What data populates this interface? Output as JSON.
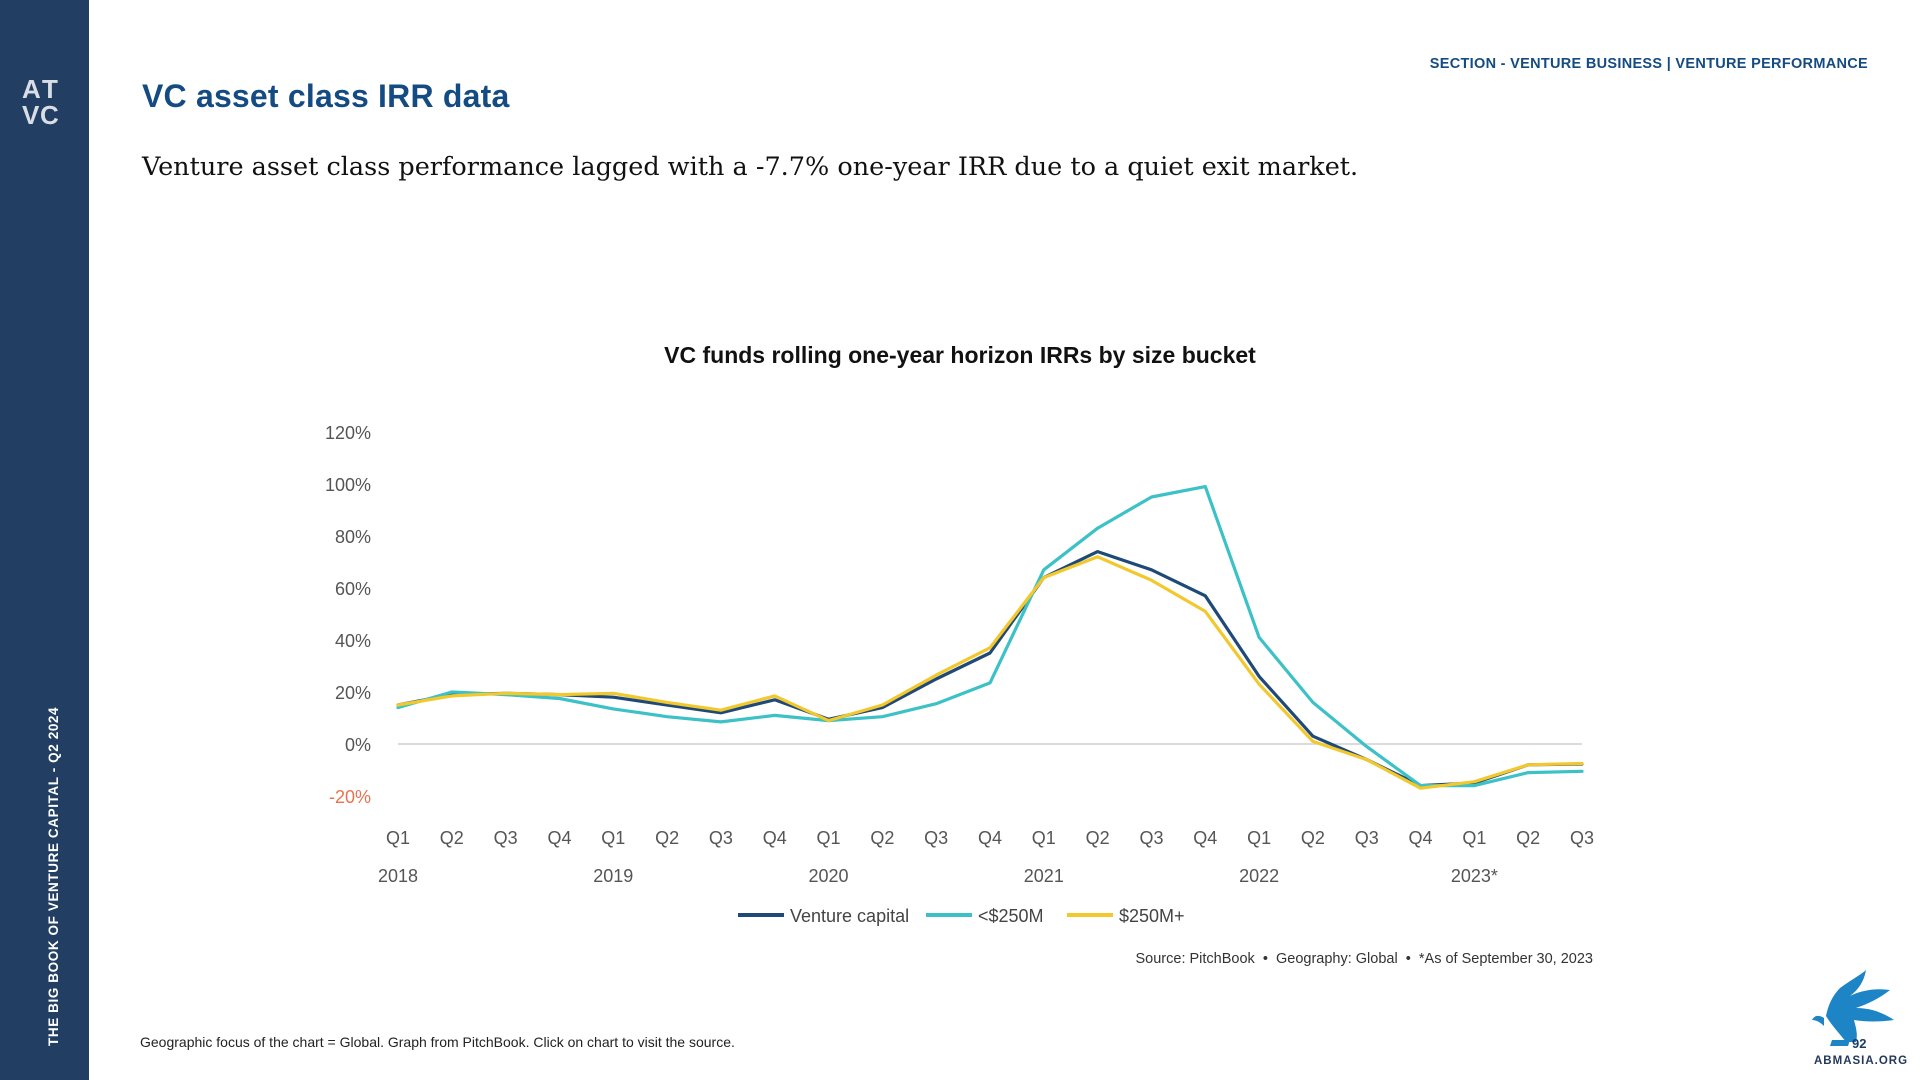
{
  "sidebar": {
    "vertical_text": "THE BIG BOOK OF VENTURE CAPITAL - Q2 2024",
    "logo_text": "ATVC",
    "background": "#223f63"
  },
  "header": {
    "title": "VC asset class IRR data",
    "section": "SECTION - VENTURE BUSINESS | VENTURE PERFORMANCE"
  },
  "subtitle": "Venture asset class performance lagged with a -7.7% one-year IRR due to a quiet exit market.",
  "footnote": "Geographic focus of the chart = Global. Graph from PitchBook. Click on chart to visit the source.",
  "page_number": "92",
  "watermark": "ABMASIA.ORG",
  "colors": {
    "accent": "#144b82",
    "vc": "#1f4a78",
    "small": "#3cc1c6",
    "large": "#f2c82c",
    "negative_tick": "#e8724f"
  },
  "chart_data": {
    "type": "line",
    "title": "VC funds rolling one-year horizon IRRs by size bucket",
    "source": "Source: PitchBook  •  Geography: Global  •  *As of September 30, 2023",
    "x": [
      "Q1",
      "Q2",
      "Q3",
      "Q4",
      "Q1",
      "Q2",
      "Q3",
      "Q4",
      "Q1",
      "Q2",
      "Q3",
      "Q4",
      "Q1",
      "Q2",
      "Q3",
      "Q4",
      "Q1",
      "Q2",
      "Q3",
      "Q4",
      "Q1",
      "Q2",
      "Q3"
    ],
    "year_labels": [
      {
        "label": "2018",
        "index": 0
      },
      {
        "label": "2019",
        "index": 4
      },
      {
        "label": "2020",
        "index": 8
      },
      {
        "label": "2021",
        "index": 12
      },
      {
        "label": "2022",
        "index": 16
      },
      {
        "label": "2023*",
        "index": 20
      }
    ],
    "y_ticks": [
      "120%",
      "100%",
      "80%",
      "60%",
      "40%",
      "20%",
      "0%",
      "-20%"
    ],
    "y_tick_values": [
      120,
      100,
      80,
      60,
      40,
      20,
      0,
      -20
    ],
    "ylim": [
      -20,
      120
    ],
    "series": [
      {
        "name": "Venture capital",
        "color": "#1f4a78",
        "values": [
          15,
          19,
          19.5,
          19,
          18,
          15,
          12,
          17,
          9.5,
          14,
          25,
          35,
          64,
          74,
          67,
          57,
          26,
          3,
          -6,
          -16,
          -15,
          -8,
          -7.7
        ]
      },
      {
        "name": "<$250M",
        "color": "#3cc1c6",
        "values": [
          14,
          20,
          19,
          17.5,
          13.5,
          10.5,
          8.5,
          11,
          9,
          10.5,
          15.5,
          23.5,
          67,
          83,
          95,
          99,
          41,
          16,
          -1,
          -16,
          -16,
          -11,
          -10.5
        ]
      },
      {
        "name": "$250M+",
        "color": "#f2c82c",
        "values": [
          15,
          18.5,
          19.5,
          19,
          19.5,
          16,
          13,
          18.5,
          9,
          15,
          26.5,
          37,
          64,
          72,
          63,
          51,
          23,
          1,
          -6,
          -17,
          -14.5,
          -8,
          -7.5
        ]
      }
    ]
  }
}
